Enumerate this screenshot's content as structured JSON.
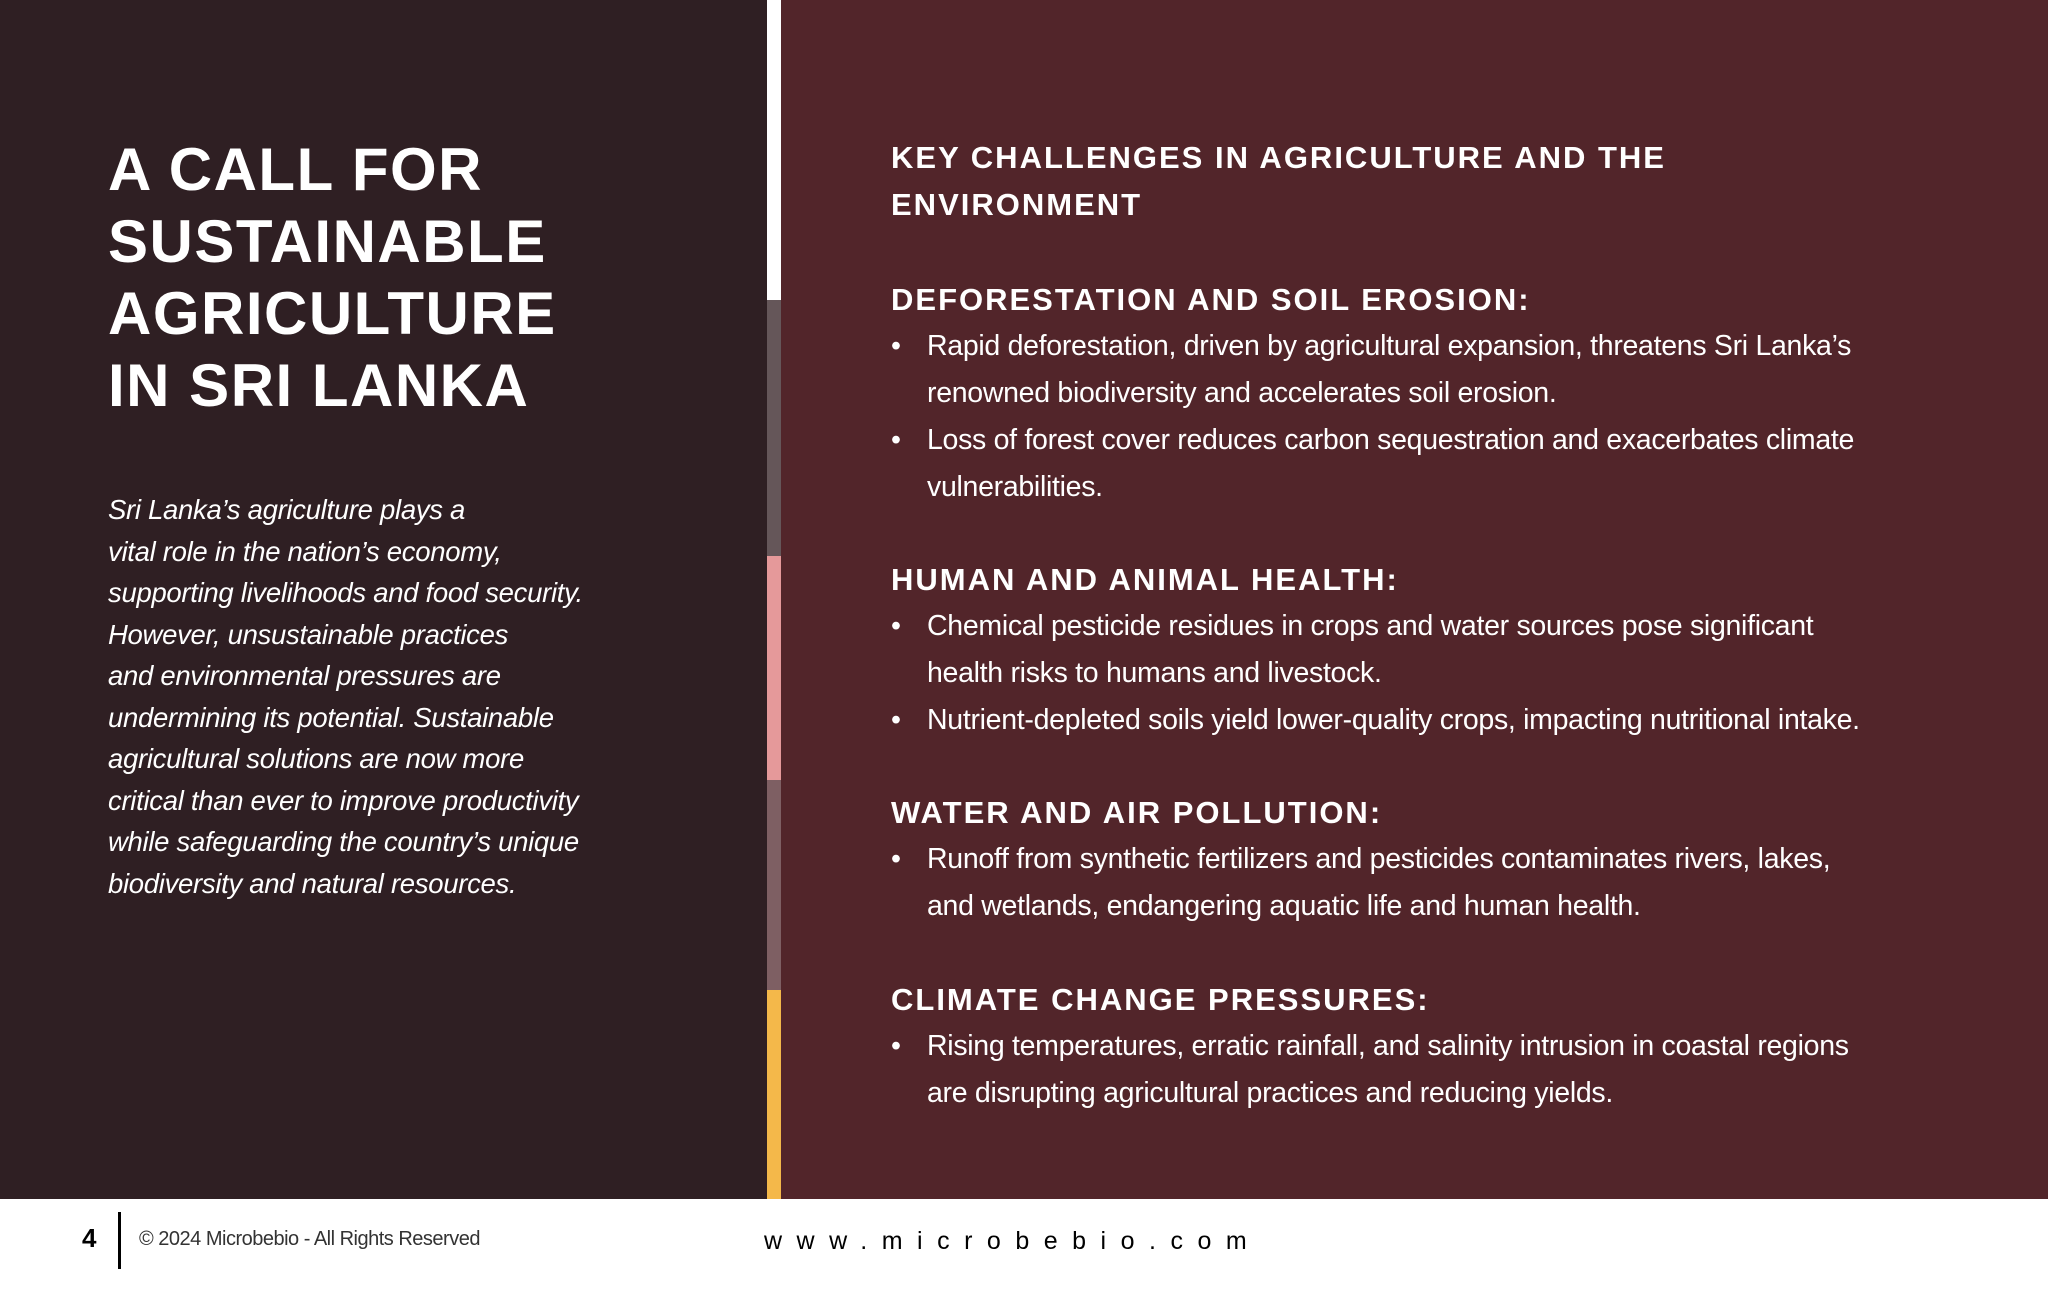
{
  "colors": {
    "left_panel": "#2f1f23",
    "right_panel": "#52252a",
    "strip": [
      "#ffffff",
      "#655659",
      "#e5999a",
      "#7e5f63",
      "#f4b84a"
    ]
  },
  "left": {
    "title": "A CALL FOR SUSTAINABLE AGRICULTURE IN SRI LANKA",
    "title_lines": [
      "A CALL FOR",
      "SUSTAINABLE",
      "AGRICULTURE",
      "IN SRI LANKA"
    ],
    "intro_lines": [
      "Sri Lanka’s agriculture plays a",
      "vital role in the nation’s economy,",
      "supporting livelihoods and food security.",
      "However, unsustainable practices",
      "and environmental pressures are",
      "undermining its potential. Sustainable",
      "agricultural solutions are now more",
      "critical than ever to improve productivity",
      "while safeguarding the country’s unique",
      "biodiversity and natural resources."
    ]
  },
  "right": {
    "heading_lines": [
      "KEY CHALLENGES IN AGRICULTURE AND THE",
      "ENVIRONMENT"
    ],
    "sections": [
      {
        "title": "DEFORESTATION AND SOIL EROSION:",
        "bullets": [
          [
            "Rapid deforestation, driven by agricultural expansion, threatens Sri Lanka’s",
            "renowned biodiversity and accelerates soil erosion."
          ],
          [
            "Loss of forest cover reduces carbon sequestration and exacerbates climate",
            "vulnerabilities."
          ]
        ]
      },
      {
        "title": "HUMAN AND ANIMAL HEALTH:",
        "bullets": [
          [
            "Chemical pesticide residues in crops and water sources pose significant",
            "health risks to humans and livestock."
          ],
          [
            "Nutrient-depleted soils yield lower-quality crops, impacting nutritional intake."
          ]
        ]
      },
      {
        "title": "WATER AND AIR POLLUTION:",
        "bullets": [
          [
            "Runoff from synthetic fertilizers and pesticides contaminates rivers, lakes,",
            "and wetlands, endangering aquatic life and human health."
          ]
        ]
      },
      {
        "title": "CLIMATE CHANGE PRESSURES:",
        "bullets": [
          [
            "Rising temperatures, erratic rainfall, and salinity intrusion in coastal regions",
            "are disrupting agricultural practices and reducing yields."
          ]
        ]
      }
    ],
    "bullet_glyph": "•"
  },
  "footer": {
    "page_number": "4",
    "copyright": "© 2024 Microbebio - All Rights Reserved",
    "url": "www.microbebio.com"
  }
}
